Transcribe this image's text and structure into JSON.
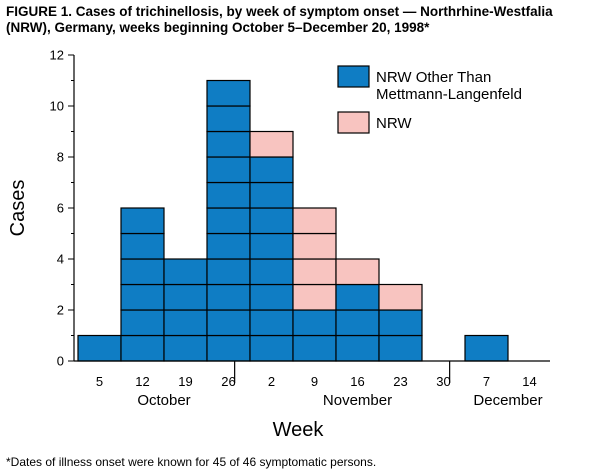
{
  "title_line1": "FIGURE 1. Cases of trichinellosis, by week of symptom onset — Northrhine-Westfalia",
  "title_line2": "(NRW), Germany, weeks beginning October 5–December 20, 1998*",
  "footnote": "*Dates of illness onset were known for 45 of 46 symptomatic persons.",
  "colors": {
    "series_blue": "#0f7dc4",
    "series_pink": "#f8c4c0",
    "stroke": "#000000"
  },
  "chart_data": {
    "type": "bar",
    "stacked": true,
    "unit_blocks": true,
    "title": "FIGURE 1. Cases of trichinellosis, by week of symptom onset — Northrhine-Westfalia (NRW), Germany, weeks beginning October 5–December 20, 1998*",
    "xlabel": "Week",
    "ylabel": "Cases",
    "ylim": [
      0,
      12
    ],
    "yticks": [
      0,
      2,
      4,
      6,
      8,
      10,
      12
    ],
    "categories": [
      "Oct 5",
      "Oct 12",
      "Oct 19",
      "Oct 26",
      "Nov 2",
      "Nov 9",
      "Nov 16",
      "Nov 23",
      "Nov 30",
      "Dec 7",
      "Dec 14"
    ],
    "tick_labels": [
      "5",
      "12",
      "19",
      "26",
      "2",
      "9",
      "16",
      "23",
      "30",
      "7",
      "14"
    ],
    "months": [
      {
        "label": "October",
        "weeks": [
          0,
          1,
          2,
          3
        ]
      },
      {
        "label": "November",
        "weeks": [
          4,
          5,
          6,
          7,
          8
        ]
      },
      {
        "label": "December",
        "weeks": [
          9,
          10
        ]
      }
    ],
    "series": [
      {
        "name": "NRW Other Than Mettmann-Langenfeld",
        "color": "#0f7dc4",
        "values": [
          1,
          6,
          4,
          11,
          8,
          2,
          3,
          2,
          0,
          1,
          0
        ]
      },
      {
        "name": "NRW",
        "color": "#f8c4c0",
        "values": [
          0,
          0,
          0,
          0,
          1,
          4,
          1,
          1,
          0,
          0,
          0
        ]
      }
    ],
    "legend_position": "top-right",
    "grid": false
  }
}
